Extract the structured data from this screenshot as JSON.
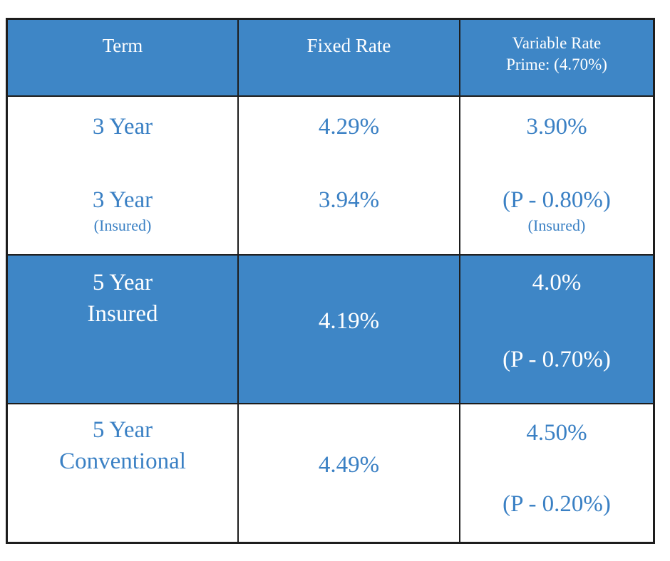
{
  "colors": {
    "header_bg": "#3E86C6",
    "highlight_row_bg": "#3E86C6",
    "blue_text": "#3A80C4",
    "header_text": "#FFFFFF",
    "border": "#1D1D1D"
  },
  "table": {
    "header": {
      "term": "Term",
      "fixed": "Fixed Rate",
      "variable_line1": "Variable Rate",
      "variable_line2": "Prime: (4.70%)"
    },
    "rows": [
      {
        "highlighted": false,
        "term_line1": "3 Year",
        "term_line2": "3 Year",
        "term_note": "(Insured)",
        "fixed_line1": "4.29%",
        "fixed_line2": "3.94%",
        "variable_line1": "3.90%",
        "variable_line2": "(P - 0.80%)",
        "variable_note": "(Insured)"
      },
      {
        "highlighted": true,
        "term_line1": "5 Year",
        "term_line2": "Insured",
        "fixed_line1": "4.19%",
        "variable_line1": "4.0%",
        "variable_line2": "(P - 0.70%)"
      },
      {
        "highlighted": false,
        "term_line1": "5 Year",
        "term_line2": "Conventional",
        "fixed_line1": "4.49%",
        "variable_line1": "4.50%",
        "variable_line2": "(P - 0.20%)"
      }
    ]
  }
}
